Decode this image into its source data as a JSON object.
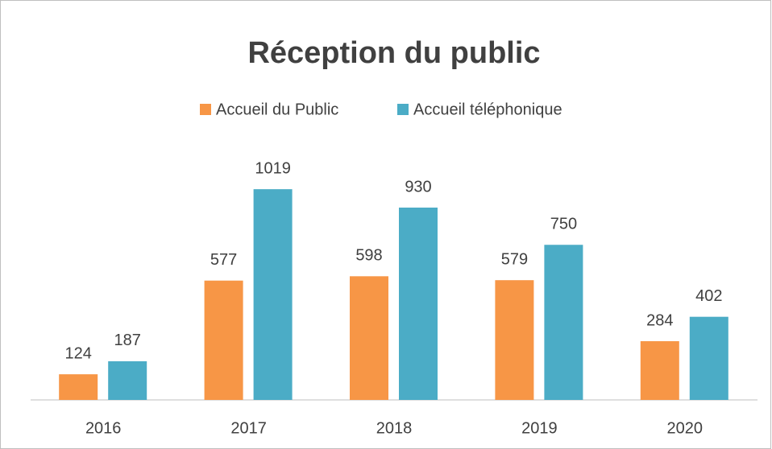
{
  "chart_data": {
    "type": "bar",
    "title": "Réception du public",
    "categories": [
      "2016",
      "2017",
      "2018",
      "2019",
      "2020"
    ],
    "series": [
      {
        "name": "Accueil du Public",
        "color": "#f79646",
        "values": [
          124,
          577,
          598,
          579,
          284
        ]
      },
      {
        "name": "Accueil téléphonique",
        "color": "#4bacc6",
        "values": [
          187,
          1019,
          930,
          750,
          402
        ]
      }
    ]
  }
}
